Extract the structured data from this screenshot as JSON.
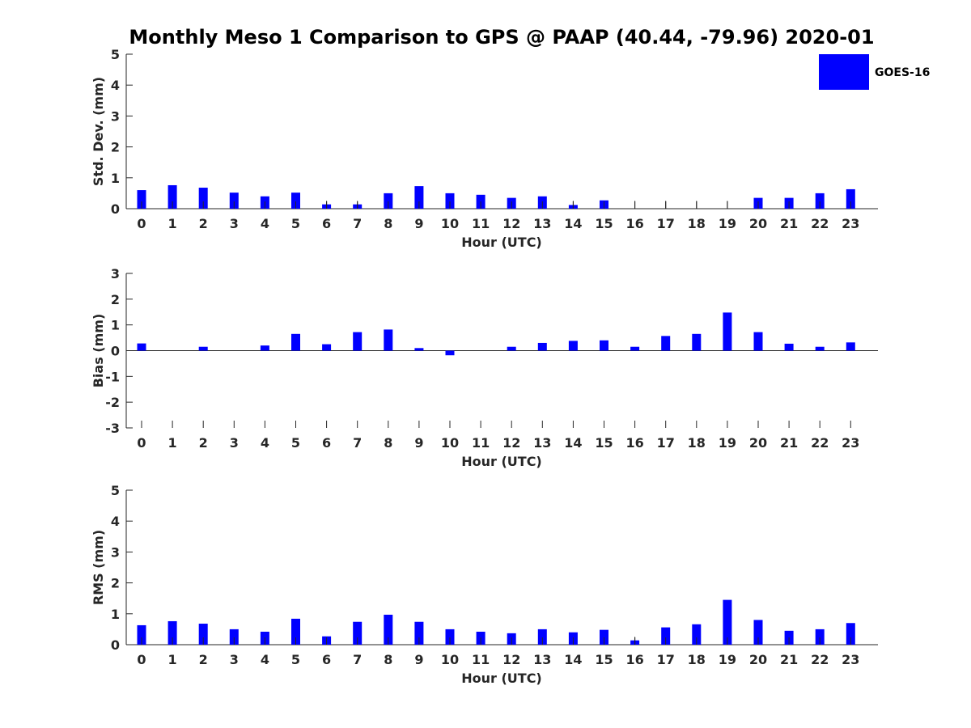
{
  "title": "Monthly Meso 1 Comparison to GPS @ PAAP (40.44, -79.96) 2020-01",
  "colors": {
    "bar": "#0000ff",
    "axis": "#262626",
    "errorbar": "#000000"
  },
  "chart_data": [
    {
      "type": "bar",
      "title": "Monthly Meso 1 Comparison to GPS @ PAAP (40.44, -79.96) 2020-01",
      "xlabel": "Hour (UTC)",
      "ylabel": "Std. Dev. (mm)",
      "ylim": [
        0,
        5
      ],
      "yticks": [
        0,
        1,
        2,
        3,
        4,
        5
      ],
      "grid": false,
      "legend": {
        "placement": "top-right",
        "entries": [
          "GOES-16"
        ]
      },
      "categories": [
        "0",
        "1",
        "2",
        "3",
        "4",
        "5",
        "6",
        "7",
        "8",
        "9",
        "10",
        "11",
        "12",
        "13",
        "14",
        "15",
        "16",
        "17",
        "18",
        "19",
        "20",
        "21",
        "22",
        "23"
      ],
      "series": [
        {
          "name": "GOES-16",
          "values": [
            0.6,
            0.76,
            0.68,
            0.52,
            0.4,
            0.52,
            0.14,
            0.14,
            0.5,
            0.73,
            0.5,
            0.45,
            0.35,
            0.4,
            0.12,
            0.27,
            0,
            0,
            0,
            0,
            0.35,
            0.35,
            0.5,
            0.63
          ]
        }
      ],
      "whiskers": [
        null,
        null,
        null,
        null,
        null,
        null,
        0.25,
        0.25,
        null,
        null,
        null,
        null,
        null,
        null,
        0.25,
        null,
        0.25,
        0.25,
        0.25,
        0.25,
        null,
        null,
        null,
        null
      ]
    },
    {
      "type": "bar",
      "xlabel": "Hour (UTC)",
      "ylabel": "Bias (mm)",
      "ylim": [
        -3,
        3
      ],
      "yticks": [
        -3,
        -2,
        -1,
        0,
        1,
        2,
        3
      ],
      "grid": false,
      "categories": [
        "0",
        "1",
        "2",
        "3",
        "4",
        "5",
        "6",
        "7",
        "8",
        "9",
        "10",
        "11",
        "12",
        "13",
        "14",
        "15",
        "16",
        "17",
        "18",
        "19",
        "20",
        "21",
        "22",
        "23"
      ],
      "series": [
        {
          "name": "GOES-16",
          "values": [
            0.28,
            0,
            0.15,
            0,
            0.2,
            0.65,
            0.25,
            0.72,
            0.82,
            0.1,
            -0.18,
            0,
            0.15,
            0.3,
            0.38,
            0.4,
            0.15,
            0.57,
            0.65,
            1.48,
            0.72,
            0.27,
            0.15,
            0.32
          ]
        }
      ],
      "whiskers": [
        null,
        null,
        null,
        null,
        null,
        null,
        null,
        null,
        null,
        null,
        null,
        null,
        null,
        null,
        null,
        null,
        null,
        null,
        null,
        null,
        null,
        null,
        null,
        null
      ]
    },
    {
      "type": "bar",
      "xlabel": "Hour (UTC)",
      "ylabel": "RMS (mm)",
      "ylim": [
        0,
        5
      ],
      "yticks": [
        0,
        1,
        2,
        3,
        4,
        5
      ],
      "grid": false,
      "categories": [
        "0",
        "1",
        "2",
        "3",
        "4",
        "5",
        "6",
        "7",
        "8",
        "9",
        "10",
        "11",
        "12",
        "13",
        "14",
        "15",
        "16",
        "17",
        "18",
        "19",
        "20",
        "21",
        "22",
        "23"
      ],
      "series": [
        {
          "name": "GOES-16",
          "values": [
            0.63,
            0.76,
            0.68,
            0.5,
            0.42,
            0.84,
            0.27,
            0.74,
            0.97,
            0.74,
            0.5,
            0.42,
            0.37,
            0.5,
            0.4,
            0.48,
            0.14,
            0.56,
            0.66,
            1.45,
            0.8,
            0.45,
            0.5,
            0.7
          ]
        }
      ],
      "whiskers": [
        null,
        null,
        null,
        null,
        null,
        null,
        null,
        null,
        null,
        null,
        null,
        null,
        null,
        null,
        null,
        null,
        0.25,
        null,
        null,
        null,
        null,
        null,
        null,
        null
      ]
    }
  ]
}
